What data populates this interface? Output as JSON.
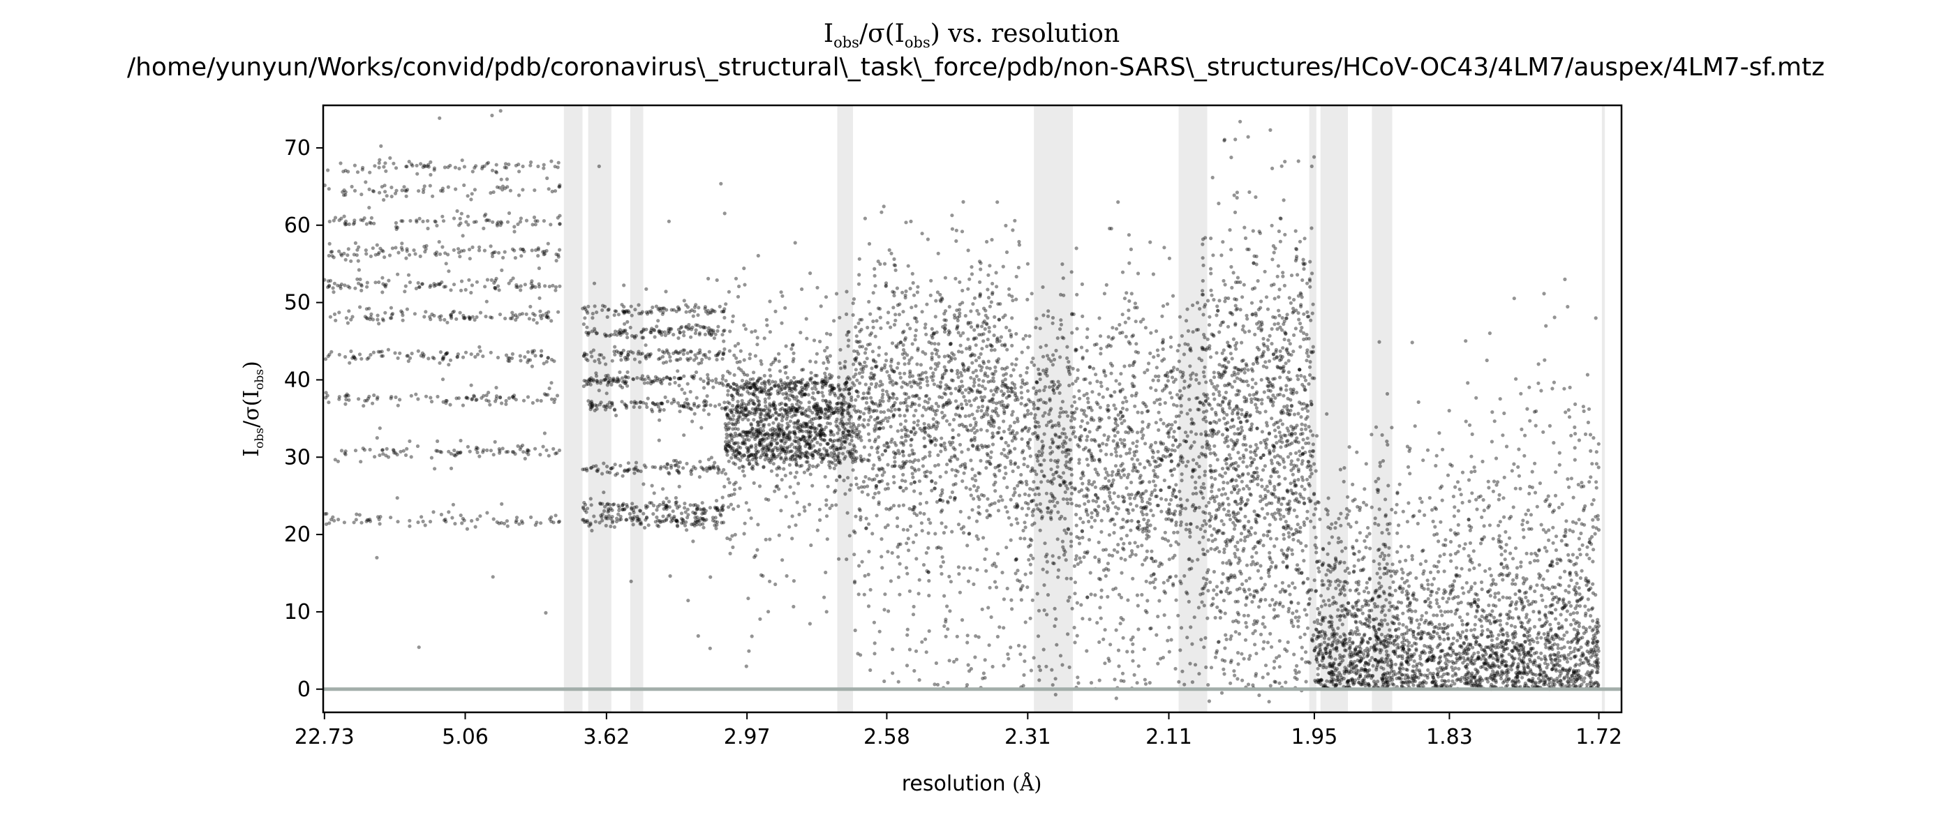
{
  "chart_data": {
    "type": "scatter",
    "title": "I_obs/σ(I_obs) vs. resolution",
    "title_parts": {
      "main": "I",
      "sub1": "obs",
      "mid": "/σ(I",
      "sub2": "obs",
      "end": ") vs. resolution"
    },
    "subtitle": "/home/yunyun/Works/convid/pdb/coronavirus\\_structural\\_task\\_force/pdb/non-SARS\\_structures/HCoV-OC43/4LM7/auspex/4LM7-sf.mtz",
    "xlabel": "resolution",
    "xlabel_unit": "(Å)",
    "ylabel": "I_obs/σ(I_obs)",
    "ylabel_parts": {
      "main": "I",
      "sub1": "obs",
      "mid": "/σ(I",
      "sub2": "obs",
      "end": ")"
    },
    "x_scale": "inverse-square (1/d²)",
    "x_tick_labels": [
      "22.73",
      "5.06",
      "3.62",
      "2.97",
      "2.58",
      "2.31",
      "2.11",
      "1.95",
      "1.83",
      "1.72"
    ],
    "x_ticks": [
      22.73,
      5.06,
      3.62,
      2.97,
      2.58,
      2.31,
      2.11,
      1.95,
      1.83,
      1.72
    ],
    "xlim": [
      25.0,
      1.705
    ],
    "ylim": [
      -3,
      75.5
    ],
    "y_ticks": [
      0,
      10,
      20,
      30,
      40,
      50,
      60,
      70
    ],
    "y_tick_labels": [
      "0",
      "10",
      "20",
      "30",
      "40",
      "50",
      "60",
      "70"
    ],
    "ice_ring_bands": [
      [
        3.92,
        3.78
      ],
      [
        3.74,
        3.59
      ],
      [
        3.48,
        3.41
      ],
      [
        2.7,
        2.66
      ],
      [
        2.3,
        2.24
      ],
      [
        2.098,
        2.064
      ],
      [
        1.955,
        1.948
      ],
      [
        1.944,
        1.918
      ],
      [
        1.896,
        1.878
      ],
      [
        1.718,
        1.716
      ]
    ],
    "zero_line": 0,
    "point_color": "#000000",
    "band_color": "#ebebeb",
    "zero_line_color": "#a3aeaa",
    "segments": [
      {
        "from": 22.73,
        "to": 3.95,
        "style": "discrete-levels",
        "levels": [
          21.8,
          30.8,
          37.5,
          43.0,
          48.2,
          52.3,
          56.5,
          60.5,
          64.5,
          67.5
        ]
      },
      {
        "from": 3.78,
        "to": 3.05,
        "style": "discrete-levels",
        "levels": [
          21.8,
          23.5,
          28.5,
          36.8,
          40.0,
          43.2,
          46.3,
          49.0
        ]
      },
      {
        "from": 3.05,
        "to": 2.66,
        "style": "bands",
        "center": 34.0,
        "spread": 6.0
      },
      {
        "from": 2.66,
        "to": 2.33,
        "style": "cloud",
        "center": 38.0,
        "spread": 9.0
      },
      {
        "from": 2.33,
        "to": 2.07,
        "style": "cloud",
        "center": 32.0,
        "spread": 10.0
      },
      {
        "from": 2.07,
        "to": 1.95,
        "style": "cloud",
        "center": 33.0,
        "spread": 14.0
      },
      {
        "from": 1.95,
        "to": 1.72,
        "style": "decay",
        "center": 12.0,
        "spread": 16.0
      }
    ],
    "grid": false,
    "legend": "none"
  }
}
